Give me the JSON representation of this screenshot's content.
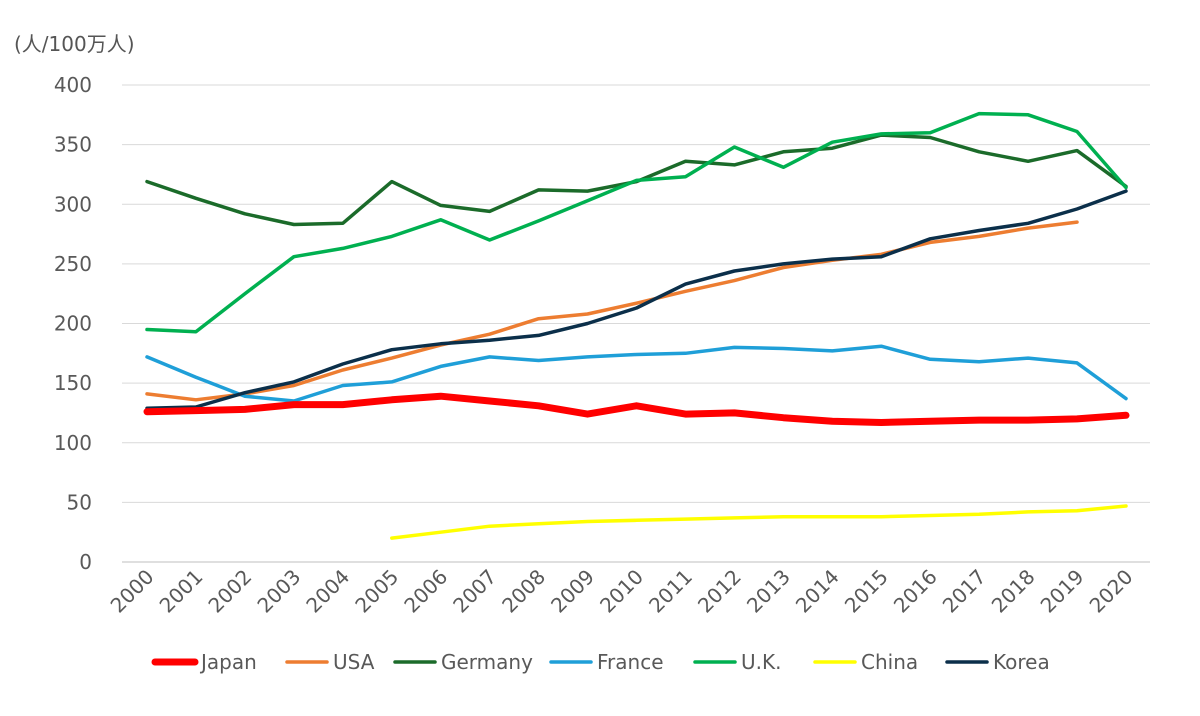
{
  "chart_data": {
    "type": "line",
    "title": "",
    "ylabel": "(人/100万人)",
    "xlabel": "",
    "ylim": [
      0,
      400
    ],
    "yticks": [
      0,
      50,
      100,
      150,
      200,
      250,
      300,
      350,
      400
    ],
    "grid": true,
    "legend_position": "bottom",
    "categories": [
      "2000",
      "2001",
      "2002",
      "2003",
      "2004",
      "2005",
      "2006",
      "2007",
      "2008",
      "2009",
      "2010",
      "2011",
      "2012",
      "2013",
      "2014",
      "2015",
      "2016",
      "2017",
      "2018",
      "2019",
      "2020"
    ],
    "series": [
      {
        "name": "Japan",
        "color": "#ff0000",
        "width": "thick",
        "values": [
          126,
          127,
          128,
          132,
          132,
          136,
          139,
          135,
          131,
          124,
          131,
          124,
          125,
          121,
          118,
          117,
          118,
          119,
          119,
          120,
          123
        ]
      },
      {
        "name": "USA",
        "color": "#ed7d31",
        "width": "normal",
        "values": [
          141,
          136,
          141,
          148,
          161,
          171,
          182,
          191,
          204,
          208,
          217,
          227,
          236,
          247,
          253,
          258,
          268,
          273,
          280,
          285,
          null
        ]
      },
      {
        "name": "Germany",
        "color": "#1b6b2a",
        "width": "normal",
        "values": [
          319,
          305,
          292,
          283,
          284,
          319,
          299,
          294,
          312,
          311,
          319,
          336,
          333,
          344,
          347,
          358,
          356,
          344,
          336,
          345,
          315
        ]
      },
      {
        "name": "France",
        "color": "#1f9fd8",
        "width": "normal",
        "values": [
          172,
          155,
          139,
          135,
          148,
          151,
          164,
          172,
          169,
          172,
          174,
          175,
          180,
          179,
          177,
          181,
          170,
          168,
          171,
          167,
          137
        ]
      },
      {
        "name": "U.K.",
        "color": "#00b050",
        "width": "normal",
        "values": [
          195,
          193,
          225,
          256,
          263,
          273,
          287,
          270,
          286,
          303,
          320,
          323,
          348,
          331,
          352,
          359,
          360,
          376,
          375,
          361,
          314
        ]
      },
      {
        "name": "China",
        "color": "#ffff00",
        "width": "normal",
        "values": [
          null,
          null,
          null,
          null,
          null,
          20,
          25,
          30,
          32,
          34,
          35,
          36,
          37,
          38,
          38,
          38,
          39,
          40,
          42,
          43,
          47
        ]
      },
      {
        "name": "Korea",
        "color": "#0b2f4a",
        "width": "normal",
        "values": [
          129,
          130,
          142,
          151,
          166,
          178,
          183,
          186,
          190,
          200,
          213,
          233,
          244,
          250,
          254,
          256,
          271,
          278,
          284,
          296,
          311
        ]
      }
    ]
  }
}
